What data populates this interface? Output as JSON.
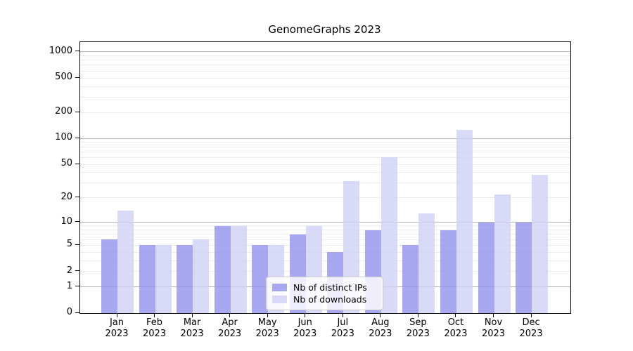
{
  "title": "GenomeGraphs 2023",
  "colors": {
    "ips_bar": "rgba(146,146,236,0.8)",
    "downloads_bar": "rgba(208,208,246,0.8)",
    "grid_major": "#b3b3b3",
    "grid_minor": "#ececec",
    "axis": "#000000",
    "legend_border": "#cccccc"
  },
  "chart_data": {
    "type": "bar",
    "title": "GenomeGraphs 2023",
    "categories": [
      "Jan",
      "Feb",
      "Mar",
      "Apr",
      "May",
      "Jun",
      "Jul",
      "Aug",
      "Sep",
      "Oct",
      "Nov",
      "Dec"
    ],
    "year_label": "2023",
    "series": [
      {
        "name": "Nb of distinct IPs",
        "values": [
          6,
          5,
          5,
          9,
          5,
          7,
          4,
          8,
          5,
          8,
          10,
          10
        ],
        "color_key": "ips_bar"
      },
      {
        "name": "Nb of downloads",
        "values": [
          14,
          5,
          6,
          9,
          5,
          9,
          32,
          60,
          13,
          125,
          22,
          38
        ],
        "color_key": "downloads_bar"
      }
    ],
    "y_scale": "log1p",
    "ylim": [
      0,
      1290
    ],
    "y_ticks": [
      0,
      1,
      2,
      5,
      10,
      20,
      50,
      100,
      200,
      500,
      1000
    ],
    "y_major_gridlines": [
      1,
      10,
      100,
      1000
    ],
    "y_minor_gridlines": [
      2,
      3,
      4,
      5,
      6,
      7,
      8,
      9,
      20,
      30,
      40,
      50,
      60,
      70,
      80,
      90,
      200,
      300,
      400,
      500,
      600,
      700,
      800,
      900
    ],
    "grid": true,
    "legend_position": "lower-center-inside"
  }
}
